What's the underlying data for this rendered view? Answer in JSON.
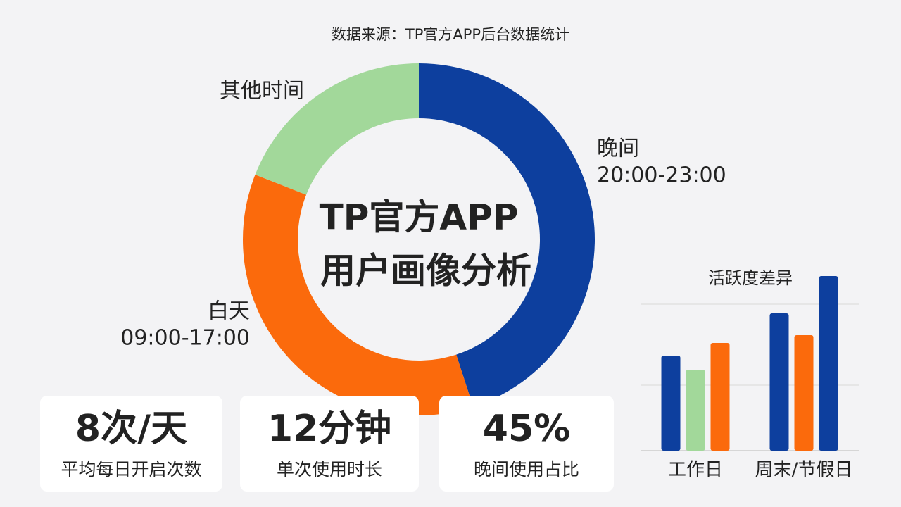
{
  "source": "数据来源：TP官方APP后台数据统计",
  "chart_data": [
    {
      "type": "pie",
      "donut": true,
      "title_lines": [
        "TP官方APP",
        "用户画像分析"
      ],
      "categories": [
        "晚间",
        "白天",
        "其他时间"
      ],
      "periods": [
        "20:00-23:00",
        "09:00-17:00",
        null
      ],
      "values": [
        45,
        36,
        19
      ],
      "colors": [
        "#0d3f9e",
        "#fb6a0c",
        "#a2d89a"
      ]
    },
    {
      "type": "bar",
      "title": "活跃度差异",
      "categories": [
        "工作日",
        "周末/节假日"
      ],
      "series": [
        {
          "colors": [
            "#0d3f9e",
            "#0d3f9e"
          ],
          "values": [
            135,
            195
          ]
        },
        {
          "colors": [
            "#a2d89a",
            "#fb6a0c"
          ],
          "values": [
            115,
            164
          ]
        },
        {
          "colors": [
            "#fb6a0c",
            "#0d3f9e"
          ],
          "values": [
            153,
            248
          ]
        }
      ],
      "ylim": [
        0,
        260
      ],
      "grid_values": [
        93,
        208
      ],
      "grid": true
    }
  ],
  "cards": [
    {
      "value": "8次/天",
      "label": "平均每日开启次数"
    },
    {
      "value": "12分钟",
      "label": "单次使用时长"
    },
    {
      "value": "45%",
      "label": "晚间使用占比"
    }
  ]
}
